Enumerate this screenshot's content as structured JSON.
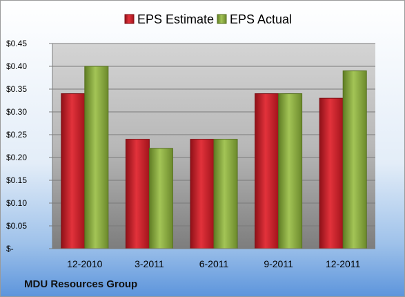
{
  "footer": {
    "company": "MDU Resources Group"
  },
  "colors": {
    "estimate": "#c8202a",
    "actual": "#8cb040"
  },
  "chart_data": {
    "type": "bar",
    "title": "",
    "xlabel": "",
    "ylabel": "",
    "categories": [
      "12-2010",
      "3-2011",
      "6-2011",
      "9-2011",
      "12-2011"
    ],
    "series": [
      {
        "name": "EPS Estimate",
        "values": [
          0.34,
          0.24,
          0.24,
          0.34,
          0.33
        ]
      },
      {
        "name": "EPS Actual",
        "values": [
          0.4,
          0.22,
          0.24,
          0.34,
          0.39
        ]
      }
    ],
    "ylim": [
      0,
      0.45
    ],
    "yticks": [
      0,
      0.05,
      0.1,
      0.15,
      0.2,
      0.25,
      0.3,
      0.35,
      0.4,
      0.45
    ],
    "ytick_labels": [
      "$-",
      "$0.05",
      "$0.10",
      "$0.15",
      "$0.20",
      "$0.25",
      "$0.30",
      "$0.35",
      "$0.40",
      "$0.45"
    ],
    "grid": true,
    "legend_position": "top"
  }
}
